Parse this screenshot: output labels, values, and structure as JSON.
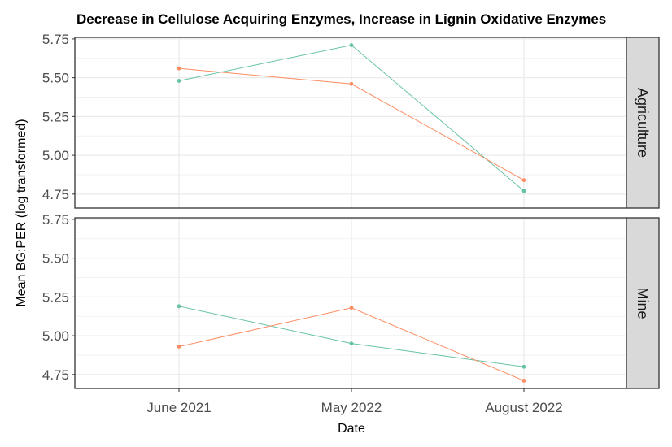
{
  "chart_data": {
    "type": "line",
    "title": "Decrease in Cellulose Acquiring Enzymes, Increase in Lignin Oxidative Enzymes",
    "xlabel": "Date",
    "ylabel": "Mean BG:PER (log transformed)",
    "categories": [
      "June 2021",
      "May 2022",
      "August 2022"
    ],
    "ylim": [
      4.66,
      5.76
    ],
    "yticks": [
      "4.75",
      "5.00",
      "5.25",
      "5.50",
      "5.75"
    ],
    "grid": true,
    "colors": {
      "series_a": "#66c2a5",
      "series_b": "#fc8d62"
    },
    "facets": [
      {
        "label": "Agriculture",
        "series": [
          {
            "color": "#66c2a5",
            "values": [
              5.48,
              5.71,
              4.77
            ]
          },
          {
            "color": "#fc8d62",
            "values": [
              5.56,
              5.46,
              4.84
            ]
          }
        ]
      },
      {
        "label": "Mine",
        "series": [
          {
            "color": "#66c2a5",
            "values": [
              5.19,
              4.95,
              4.8
            ]
          },
          {
            "color": "#fc8d62",
            "values": [
              4.93,
              5.18,
              4.71
            ]
          }
        ]
      }
    ]
  }
}
